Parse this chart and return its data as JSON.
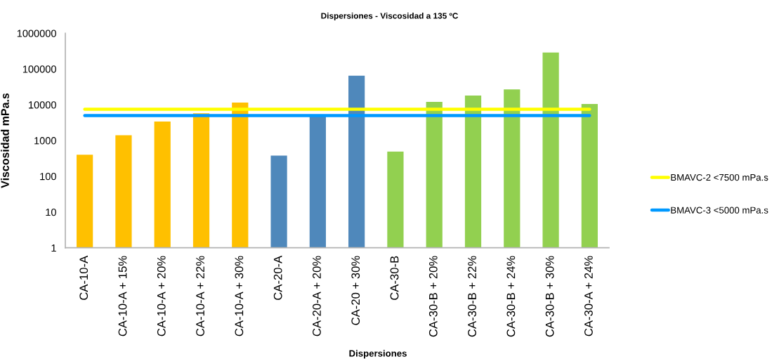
{
  "chart_data": {
    "type": "bar",
    "title": "Dispersiones - Viscosidad a 135 ºC",
    "xlabel": "Dispersiones",
    "ylabel": "Viscosidad mPa.s",
    "categories": [
      "CA-10-A",
      "CA-10-A + 15%",
      "CA-10-A + 20%",
      "CA-10-A + 22%",
      "CA-10-A + 30%",
      "CA-20-A",
      "CA-20-A + 20%",
      "CA-20 + 30%",
      "CA-30-B",
      "CA-30-B + 20%",
      "CA-30-B + 22%",
      "CA-30-B + 24%",
      "CA-30-B + 30%",
      "CA-30-A + 24%"
    ],
    "log": "y",
    "ylim": [
      1,
      1000000
    ],
    "yticks": [
      1,
      10,
      100,
      1000,
      10000,
      100000,
      1000000
    ],
    "grid": false,
    "legend": "right",
    "line_style": "solid",
    "series": [
      {
        "colors": [
          "#ffc000",
          "#ffc000",
          "#ffc000",
          "#ffc000",
          "#ffc000",
          "#4f88bb",
          "#4f88bb",
          "#4f88bb",
          "#92d050",
          "#92d050",
          "#92d050",
          "#92d050",
          "#92d050",
          "#92d050"
        ],
        "values": [
          400,
          1400,
          3400,
          5800,
          11500,
          380,
          5200,
          65000,
          490,
          12000,
          18000,
          27000,
          290000,
          10500
        ]
      },
      {
        "type": "line",
        "name": "BMAVC-2 <7500 mPa.s",
        "color": "#ffff00",
        "values": [
          7500,
          7500,
          7500,
          7500,
          7500,
          7500,
          7500,
          7500,
          7500,
          7500,
          7500,
          7500,
          7500,
          7500
        ]
      },
      {
        "type": "line",
        "name": "BMAVC-3 <5000 mPa.s",
        "color": "#0099ff",
        "values": [
          5000,
          5000,
          5000,
          5000,
          5000,
          5000,
          5000,
          5000,
          5000,
          5000,
          5000,
          5000,
          5000,
          5000
        ]
      }
    ]
  }
}
